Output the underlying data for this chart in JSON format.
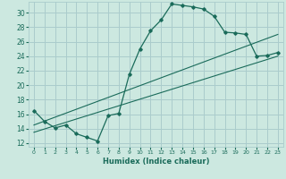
{
  "title": "",
  "xlabel": "Humidex (Indice chaleur)",
  "bg_color": "#cce8e0",
  "grid_color": "#aacccc",
  "line_color": "#1a6b5a",
  "xlim": [
    -0.5,
    23.5
  ],
  "ylim": [
    11.5,
    31.5
  ],
  "xticks": [
    0,
    1,
    2,
    3,
    4,
    5,
    6,
    7,
    8,
    9,
    10,
    11,
    12,
    13,
    14,
    15,
    16,
    17,
    18,
    19,
    20,
    21,
    22,
    23
  ],
  "yticks": [
    12,
    14,
    16,
    18,
    20,
    22,
    24,
    26,
    28,
    30
  ],
  "main_x": [
    0,
    1,
    2,
    3,
    4,
    5,
    6,
    7,
    8,
    9,
    10,
    11,
    12,
    13,
    14,
    15,
    16,
    17,
    18,
    19,
    20,
    21,
    22,
    23
  ],
  "main_y": [
    16.5,
    15.0,
    14.1,
    14.5,
    13.3,
    12.8,
    12.3,
    15.8,
    16.1,
    21.5,
    25.0,
    27.5,
    29.0,
    31.2,
    31.0,
    30.8,
    30.5,
    29.5,
    27.3,
    27.2,
    27.0,
    24.0,
    24.1,
    24.5
  ],
  "line1_x": [
    0,
    23
  ],
  "line1_y": [
    14.5,
    27.0
  ],
  "line2_x": [
    0,
    23
  ],
  "line2_y": [
    13.5,
    24.0
  ]
}
